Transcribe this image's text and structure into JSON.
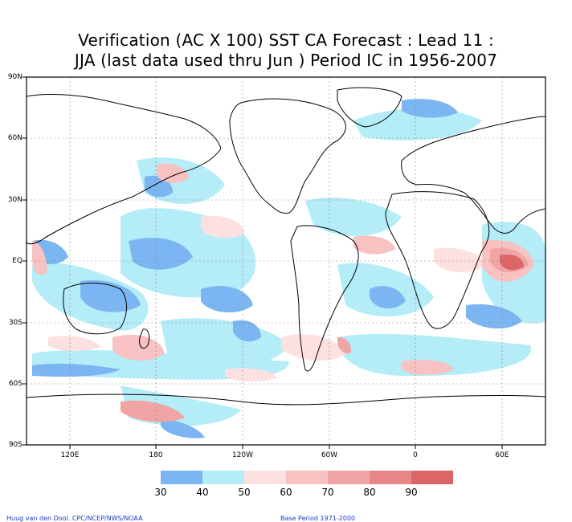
{
  "title": {
    "line1": "Verification (AC X 100) SST CA Forecast : Lead 11 :",
    "line2": "JJA (last data used thru Jun ) Period IC in 1956-2007"
  },
  "axes": {
    "lat_labels": [
      "90N",
      "60N",
      "30N",
      "EQ",
      "30S",
      "60S",
      "90S"
    ],
    "lon_labels": [
      "120E",
      "180",
      "120W",
      "60W",
      "0",
      "60E"
    ]
  },
  "colorbar": {
    "colors": [
      "#7cb6f2",
      "#b4ecf7",
      "#fde0e0",
      "#f8c2c2",
      "#f0a4a4",
      "#e68686",
      "#dc6666"
    ],
    "labels": [
      "30",
      "40",
      "50",
      "60",
      "70",
      "80",
      "90"
    ]
  },
  "footer": {
    "left": "Huug van den Dool. CPC/NCEP/NWS/NOAA",
    "right": "Base Period 1971-2000"
  }
}
